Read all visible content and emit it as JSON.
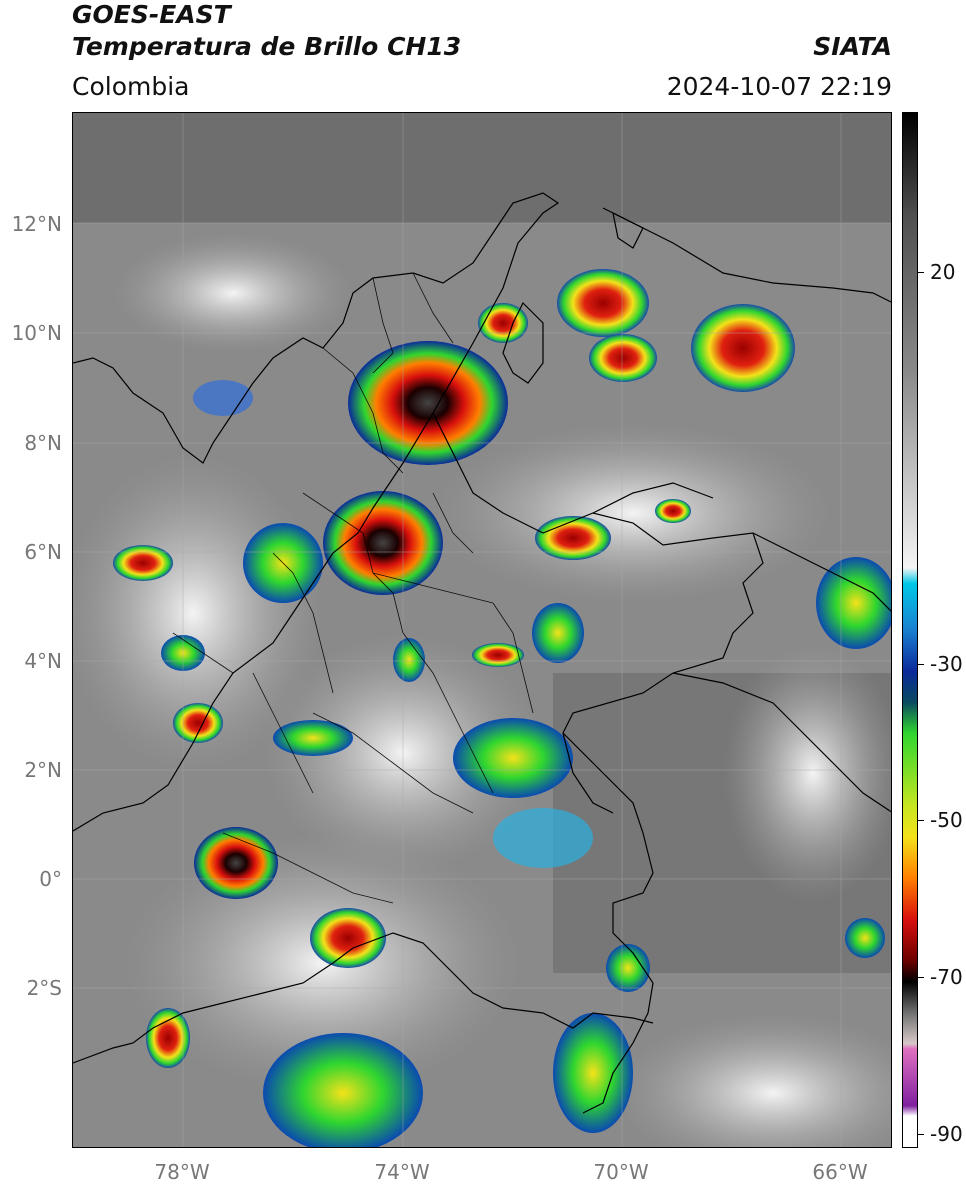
{
  "header": {
    "title_line1": "GOES-EAST",
    "title_line2": "Temperatura de Brillo CH13",
    "region": "Colombia",
    "agency": "SIATA",
    "timestamp": "2024-10-07 22:19"
  },
  "map": {
    "lat_labels": [
      "12°N",
      "10°N",
      "8°N",
      "6°N",
      "4°N",
      "2°N",
      "0°",
      "2°S"
    ],
    "lon_labels": [
      "78°W",
      "74°W",
      "70°W",
      "66°W"
    ]
  },
  "colorbar": {
    "labels": [
      "20",
      "-30",
      "-50",
      "-70",
      "-90"
    ],
    "units_hidden": "",
    "colors": {
      "warm": "#f2f2f2",
      "cyan": "#00c8e6",
      "blue": "#0a2a9a",
      "green": "#2fd62f",
      "yellow": "#f4e21a",
      "orange": "#ff7f00",
      "red": "#d8100d",
      "black": "#0a0a0a",
      "magenta": "#c040b0"
    }
  }
}
